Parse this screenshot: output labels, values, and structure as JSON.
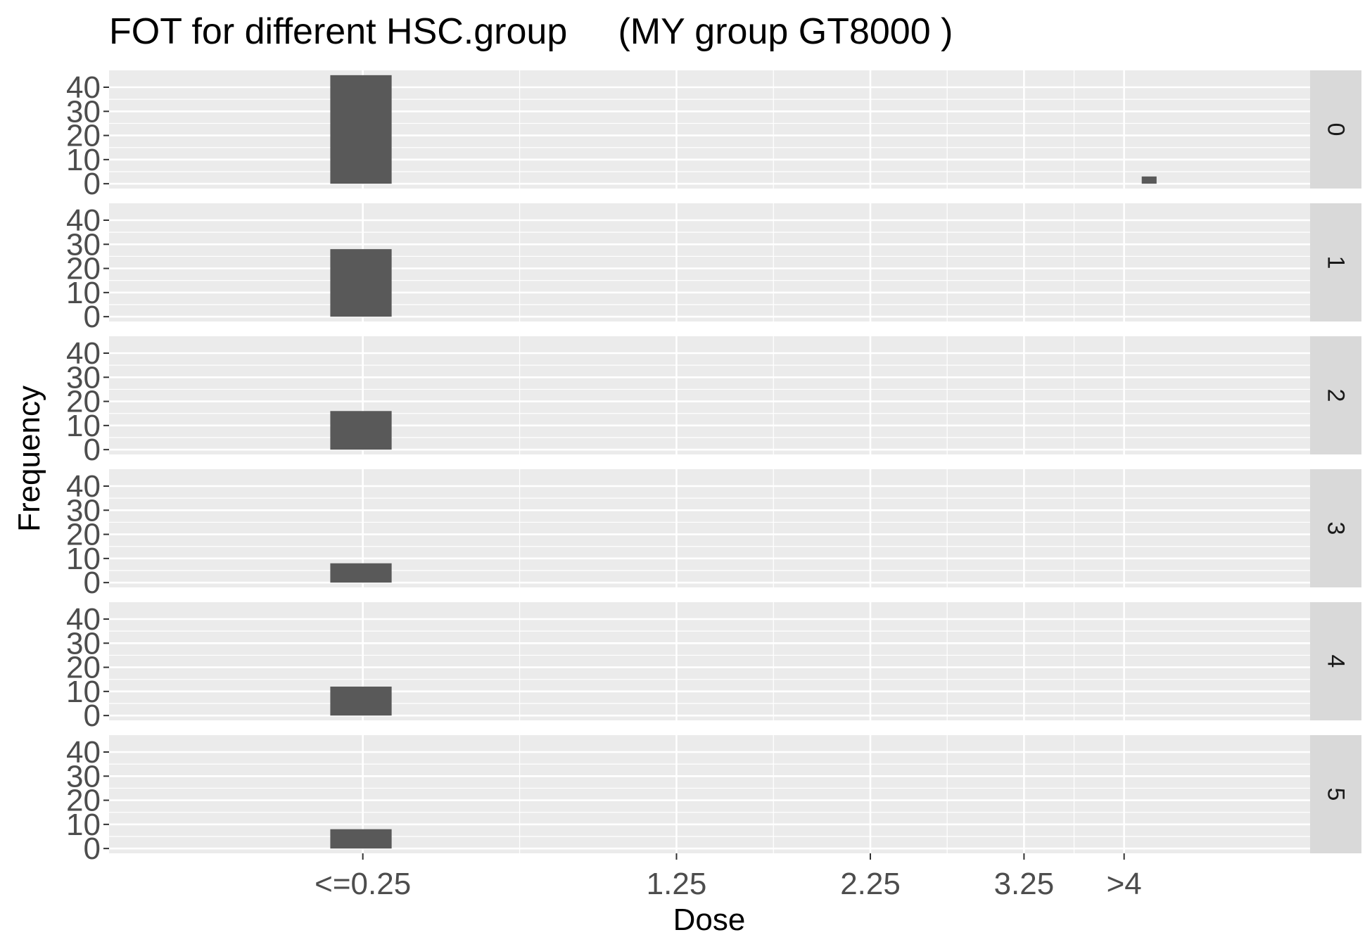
{
  "chart_data": {
    "type": "bar",
    "title": "FOT for different HSC.group     (MY group GT8000 )",
    "xlabel": "Dose",
    "ylabel": "Frequency",
    "x_ticks": [
      {
        "label": "<=0.25",
        "value": 0.25
      },
      {
        "label": "1.25",
        "value": 1.25
      },
      {
        "label": "2.25",
        "value": 2.25
      },
      {
        "label": "3.25",
        "value": 3.25
      },
      {
        "label": ">4",
        "value": 4
      }
    ],
    "x_scale": "sqrt",
    "xlim": [
      0,
      5.6
    ],
    "y_ticks": [
      0,
      10,
      20,
      30,
      40
    ],
    "ylim": [
      -2,
      47
    ],
    "facet_variable": "HSC.group",
    "panels": [
      {
        "label": "0",
        "bars": [
          {
            "x": 0.25,
            "count": 45
          },
          {
            "x": 4.2,
            "count": 3
          }
        ]
      },
      {
        "label": "1",
        "bars": [
          {
            "x": 0.25,
            "count": 28
          }
        ]
      },
      {
        "label": "2",
        "bars": [
          {
            "x": 0.25,
            "count": 16
          }
        ]
      },
      {
        "label": "3",
        "bars": [
          {
            "x": 0.25,
            "count": 8
          }
        ]
      },
      {
        "label": "4",
        "bars": [
          {
            "x": 0.25,
            "count": 12
          }
        ]
      },
      {
        "label": "5",
        "bars": [
          {
            "x": 0.25,
            "count": 8
          }
        ]
      }
    ],
    "colors": {
      "bar": "#595959",
      "panel_bg": "#ebebeb",
      "grid": "#ffffff",
      "strip_bg": "#d9d9d9",
      "tick_text": "#4d4d4d"
    }
  }
}
